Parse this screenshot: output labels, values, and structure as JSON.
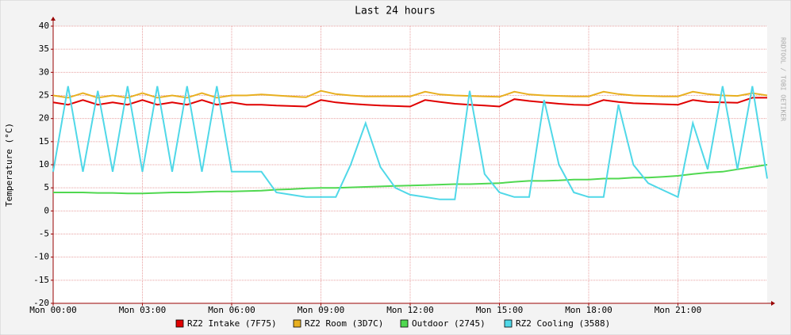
{
  "chart_data": {
    "type": "line",
    "title": "Last 24 hours",
    "y_label": "Temperature (°C)",
    "watermark": "RRDTOOL / TOBI OETIKER",
    "x": [
      0,
      0.5,
      1,
      1.5,
      2,
      2.5,
      3,
      3.5,
      4,
      4.5,
      5,
      5.5,
      6,
      6.5,
      7,
      7.5,
      8,
      8.5,
      9,
      9.5,
      10,
      10.5,
      11,
      11.5,
      12,
      12.5,
      13,
      13.5,
      14,
      14.5,
      15,
      15.5,
      16,
      16.5,
      17,
      17.5,
      18,
      18.5,
      19,
      19.5,
      20,
      20.5,
      21,
      21.5,
      22,
      22.5,
      23,
      23.5,
      24
    ],
    "xlim": [
      0,
      24
    ],
    "xticks": [
      {
        "value": 0,
        "label": "Mon 00:00"
      },
      {
        "value": 3,
        "label": "Mon 03:00"
      },
      {
        "value": 6,
        "label": "Mon 06:00"
      },
      {
        "value": 9,
        "label": "Mon 09:00"
      },
      {
        "value": 12,
        "label": "Mon 12:00"
      },
      {
        "value": 15,
        "label": "Mon 15:00"
      },
      {
        "value": 18,
        "label": "Mon 18:00"
      },
      {
        "value": 21,
        "label": "Mon 21:00"
      }
    ],
    "ylim": [
      -20,
      40
    ],
    "yticks": [
      -20,
      -15,
      -10,
      -5,
      0,
      5,
      10,
      15,
      20,
      25,
      30,
      35,
      40
    ],
    "grid": true,
    "series": [
      {
        "name": "RZ2 Intake (7F75)",
        "color": "#e00000",
        "values": [
          23.5,
          23,
          24,
          23,
          23.5,
          23,
          24,
          23,
          23.5,
          23,
          24,
          23,
          23.5,
          23,
          23,
          22.8,
          22.7,
          22.6,
          24,
          23.5,
          23.2,
          23,
          22.8,
          22.7,
          22.6,
          24,
          23.6,
          23.2,
          23,
          22.8,
          22.6,
          24.2,
          23.8,
          23.5,
          23.2,
          23,
          22.9,
          24,
          23.6,
          23.3,
          23.2,
          23.1,
          23,
          24,
          23.6,
          23.5,
          23.4,
          24.5,
          24.5
        ]
      },
      {
        "name": "RZ2 Room (3D7C)",
        "color": "#e8b020",
        "values": [
          25,
          24.5,
          25.5,
          24.5,
          25,
          24.5,
          25.5,
          24.5,
          25,
          24.5,
          25.5,
          24.5,
          25,
          25,
          25.2,
          25,
          24.8,
          24.6,
          26,
          25.3,
          25,
          24.8,
          24.8,
          24.8,
          24.8,
          25.8,
          25.2,
          25,
          24.9,
          24.8,
          24.7,
          25.8,
          25.2,
          25,
          24.9,
          24.8,
          24.8,
          25.8,
          25.3,
          25,
          24.9,
          24.8,
          24.8,
          25.8,
          25.3,
          25,
          24.9,
          25.5,
          25
        ]
      },
      {
        "name": "Outdoor (2745)",
        "color": "#50d850",
        "values": [
          4,
          4,
          4,
          3.9,
          3.9,
          3.8,
          3.8,
          3.9,
          4,
          4,
          4.1,
          4.2,
          4.2,
          4.3,
          4.4,
          4.6,
          4.7,
          4.9,
          5,
          5,
          5.1,
          5.2,
          5.3,
          5.4,
          5.5,
          5.6,
          5.7,
          5.8,
          5.8,
          5.9,
          6,
          6.3,
          6.5,
          6.5,
          6.6,
          6.8,
          6.8,
          7,
          7,
          7.2,
          7.2,
          7.4,
          7.6,
          8,
          8.3,
          8.5,
          9,
          9.5,
          10
        ]
      },
      {
        "name": "RZ2 Cooling (3588)",
        "color": "#50d8e8",
        "values": [
          8.5,
          27,
          8.5,
          26,
          8.5,
          27,
          8.5,
          27,
          8.5,
          27,
          8.5,
          27,
          8.5,
          8.5,
          8.5,
          4,
          3.5,
          3,
          3,
          3,
          10,
          19,
          9.5,
          5,
          3.5,
          3,
          2.5,
          2.5,
          26,
          8,
          4,
          3,
          3,
          24,
          10,
          4,
          3,
          3,
          23,
          10,
          6,
          4.5,
          3,
          19,
          9,
          27,
          9,
          27,
          7
        ]
      }
    ]
  }
}
